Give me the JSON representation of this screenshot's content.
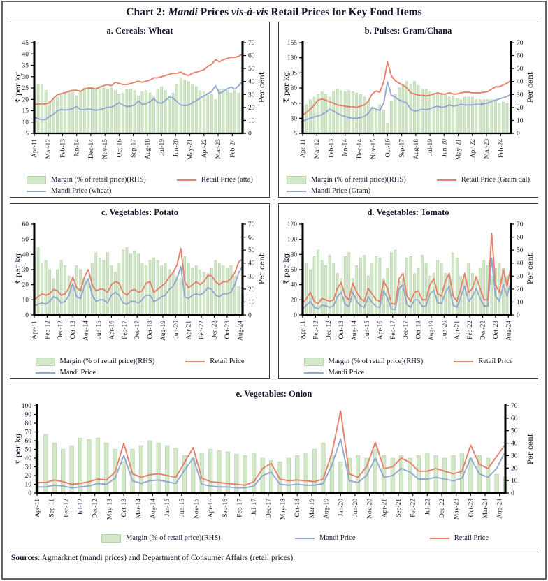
{
  "header": {
    "parts": [
      "Chart 2: ",
      "Mandi",
      " Prices ",
      "vis-à-vis",
      " Retail Prices for Key Food Items"
    ]
  },
  "footer": {
    "label": "Sources",
    "text": ": Agmarknet (mandi prices) and Department of Consumer Affairs (retail prices)."
  },
  "colors": {
    "retail": "#e5806a",
    "mandi": "#92a8cf",
    "margin_fill": "#d3e7c9",
    "margin_edge": "#b4d3a8",
    "axis": "#000000",
    "text": "#15152e"
  },
  "chart_data": [
    {
      "id": "a",
      "type": "bar+line combo",
      "title": "a. Cereals: Wheat",
      "ylabel_left": "₹ per kg",
      "ylabel_right": "Per cent",
      "y_left": {
        "min": 5,
        "max": 45,
        "step": 5
      },
      "y_right": {
        "min": 0,
        "max": 70,
        "step": 10
      },
      "x_start": "Apr-2011",
      "x_step_months": 3,
      "xtick_step_months": 11,
      "xtick_labels": [
        "Apr-11",
        "Mar-12",
        "Feb-13",
        "Jan-14",
        "Dec-14",
        "Nov-15",
        "Oct-16",
        "Sep-17",
        "Aug-18",
        "Jul-19",
        "Jun-20",
        "May-21",
        "Apr-22",
        "Mar-23",
        "Feb-24"
      ],
      "legend": {
        "margin": "Margin (% of retail price)(RHS)",
        "retail": "Retail Price (atta)",
        "mandi": "Mandi Price (wheat)"
      },
      "series": {
        "margin_pct_rhs": [
          33,
          38,
          38,
          33,
          25,
          26,
          28,
          30,
          31,
          33,
          32,
          29,
          32,
          35,
          35,
          34,
          35,
          36,
          35,
          34,
          35,
          33,
          30,
          31,
          34,
          34,
          33,
          29,
          32,
          33,
          31,
          28,
          34,
          36,
          33,
          29,
          31,
          38,
          43,
          41,
          40,
          38,
          36,
          33,
          32,
          31,
          30,
          26,
          34,
          34,
          33,
          31,
          33,
          31,
          29
        ],
        "mandi_price": [
          12,
          11.5,
          11,
          11.2,
          12.5,
          13.5,
          15,
          15.5,
          15.3,
          15.5,
          16,
          16.8,
          15.5,
          15.5,
          15.8,
          15.5,
          15.2,
          15.5,
          16,
          16.5,
          16.5,
          17.5,
          18.5,
          17.5,
          16.8,
          17,
          17.5,
          19.3,
          17.8,
          18,
          19,
          20.3,
          18.5,
          18.3,
          19.5,
          21,
          20.5,
          19,
          17.5,
          17.3,
          17.5,
          18.5,
          19.5,
          20.5,
          21.5,
          22.5,
          23.5,
          26,
          22.5,
          23.5,
          24.5,
          25.5,
          24.5,
          26,
          28
        ],
        "retail_price": [
          17.8,
          17.9,
          18,
          18,
          18.5,
          20.5,
          22,
          22.5,
          23,
          23.5,
          24,
          24,
          23.5,
          24.5,
          25,
          25,
          24.5,
          25.5,
          26,
          26.5,
          26,
          27.5,
          27,
          26.5,
          26.5,
          27,
          27.5,
          28,
          27.5,
          28,
          28.5,
          29.5,
          29.5,
          30,
          30.5,
          31,
          31.5,
          31.5,
          32,
          31,
          30.5,
          31.5,
          32,
          32.5,
          33,
          34.5,
          35.5,
          37.5,
          36.5,
          37.5,
          38,
          38.5,
          38.5,
          39,
          40
        ]
      }
    },
    {
      "id": "b",
      "type": "bar+line combo",
      "title": "b. Pulses: Gram/Chana",
      "ylabel_left": "₹ per kg",
      "ylabel_right": "Per cent",
      "y_left": {
        "min": 5,
        "max": 155,
        "step": 25
      },
      "y_right": {
        "min": 0,
        "max": 70,
        "step": 10
      },
      "x_start": "Apr-2011",
      "x_step_months": 3,
      "xtick_step_months": 11,
      "xtick_labels": [
        "Apr-11",
        "Mar-12",
        "Feb-13",
        "Jan-14",
        "Dec-14",
        "Nov-15",
        "Oct-16",
        "Sep-17",
        "Aug-18",
        "Jul-19",
        "Jun-20",
        "May-21",
        "Apr-22",
        "Mar-23",
        "Feb-24"
      ],
      "legend": {
        "margin": "Margin (% of retail price)(RHS)",
        "retail": "Retail Price (Gram dal)",
        "mandi": "Mandi Price (Gram)"
      },
      "series": {
        "margin_pct_rhs": [
          10,
          22,
          26,
          28,
          30,
          32,
          30,
          28,
          32,
          34,
          33,
          32,
          33,
          32,
          31,
          30,
          28,
          25,
          20,
          18,
          22,
          18,
          8,
          25,
          30,
          35,
          38,
          40,
          38,
          40,
          37,
          34,
          34,
          32,
          31,
          30,
          31,
          30,
          28,
          29,
          27,
          26,
          28,
          28,
          28,
          26,
          26,
          26,
          26,
          26,
          25,
          23,
          24,
          23,
          22
        ],
        "mandi_price": [
          25,
          28,
          30,
          32,
          34,
          36,
          40,
          45,
          42,
          38,
          35,
          33,
          31,
          30,
          30,
          31,
          33,
          38,
          48,
          45,
          43,
          55,
          90,
          68,
          65,
          60,
          58,
          55,
          45,
          42,
          43,
          45,
          44,
          46,
          48,
          50,
          48,
          49,
          52,
          50,
          51,
          53,
          52,
          52,
          52,
          53,
          53,
          54,
          55,
          58,
          60,
          62,
          64,
          66,
          70
        ],
        "retail_price": [
          35,
          40,
          45,
          52,
          60,
          62,
          60,
          57,
          55,
          52,
          51,
          50,
          49,
          49,
          48,
          50,
          52,
          58,
          70,
          75,
          73,
          90,
          123,
          100,
          92,
          88,
          85,
          80,
          72,
          70,
          68,
          68,
          67,
          68,
          70,
          72,
          70,
          70,
          72,
          70,
          70,
          72,
          73,
          73,
          72,
          72,
          72,
          73,
          74,
          78,
          82,
          82,
          85,
          88,
          92
        ]
      }
    },
    {
      "id": "c",
      "type": "bar+line combo",
      "title": "c. Vegetables: Potato",
      "ylabel_left": "₹ per kg",
      "ylabel_right": "Per cent",
      "y_left": {
        "min": 0,
        "max": 60,
        "step": 10
      },
      "y_right": {
        "min": 0,
        "max": 70,
        "step": 10
      },
      "x_start": "Apr-2011",
      "x_step_months": 3,
      "xtick_step_months": 10,
      "xtick_labels": [
        "Apr-11",
        "Feb-12",
        "Dec-12",
        "Oct-13",
        "Aug-14",
        "Jun-15",
        "Apr-16",
        "Feb-17",
        "Dec-17",
        "Oct-18",
        "Aug-19",
        "Jun-20",
        "Apr-21",
        "Feb-22",
        "Dec-22",
        "Oct-23",
        "Aug-24"
      ],
      "legend": {
        "margin": "Margin (% of retail price)(RHS)",
        "retail": "Retail Price",
        "mandi": "Mandi Price"
      },
      "series": {
        "margin_pct_rhs": [
          45,
          52,
          40,
          42,
          35,
          28,
          35,
          42,
          38,
          30,
          20,
          38,
          35,
          28,
          25,
          40,
          48,
          44,
          42,
          48,
          38,
          33,
          40,
          50,
          52,
          47,
          49,
          47,
          40,
          38,
          42,
          44,
          42,
          38,
          40,
          35,
          33,
          30,
          28,
          45,
          40,
          36,
          38,
          35,
          33,
          32,
          36,
          42,
          40,
          38,
          36,
          38,
          30,
          22,
          16
        ],
        "mandi_price": [
          6,
          7,
          8,
          7,
          9,
          12,
          11,
          8,
          9,
          13,
          21,
          12,
          11,
          19,
          24,
          13,
          9,
          10,
          10,
          8,
          13,
          15,
          13,
          8,
          7,
          9,
          9,
          8,
          10,
          13,
          13,
          9,
          10,
          12,
          13,
          17,
          19,
          24,
          32,
          12,
          11,
          13,
          14,
          13,
          15,
          18,
          17,
          13,
          12,
          14,
          14,
          15,
          20,
          28,
          32
        ],
        "retail_price": [
          10,
          12,
          14,
          13,
          14,
          17,
          16,
          13,
          14,
          18,
          25,
          18,
          16,
          25,
          30,
          20,
          16,
          17,
          17,
          15,
          20,
          22,
          21,
          15,
          13,
          16,
          17,
          15,
          16,
          21,
          22,
          15,
          17,
          19,
          21,
          25,
          28,
          33,
          44,
          22,
          18,
          20,
          22,
          20,
          22,
          26,
          26,
          22,
          20,
          22,
          22,
          24,
          28,
          35,
          37
        ]
      }
    },
    {
      "id": "d",
      "type": "bar+line combo",
      "title": "d. Vegetables: Tomato",
      "ylabel_left": "₹ per kg",
      "ylabel_right": "Per cent",
      "y_left": {
        "min": 0,
        "max": 120,
        "step": 20
      },
      "y_right": {
        "min": 0,
        "max": 70,
        "step": 10
      },
      "x_start": "Apr-2011",
      "x_step_months": 3,
      "xtick_step_months": 10,
      "xtick_labels": [
        "Apr-11",
        "Feb-12",
        "Dec-12",
        "Oct-13",
        "Aug-14",
        "Jun-15",
        "Apr-16",
        "Feb-17",
        "Dec-17",
        "Oct-18",
        "Aug-19",
        "Jun-20",
        "Apr-21",
        "Feb-22",
        "Dec-22",
        "Oct-23",
        "Aug-24"
      ],
      "legend": {
        "margin": "Margin (% of retail price)(RHS)",
        "retail": "Retail Price",
        "mandi": "Mandi Price"
      },
      "series": {
        "margin_pct_rhs": [
          48,
          40,
          35,
          45,
          50,
          42,
          38,
          46,
          40,
          32,
          28,
          45,
          48,
          28,
          38,
          44,
          46,
          30,
          40,
          45,
          44,
          28,
          36,
          48,
          50,
          26,
          28,
          44,
          45,
          32,
          36,
          46,
          40,
          30,
          32,
          42,
          40,
          32,
          30,
          48,
          44,
          30,
          30,
          40,
          32,
          30,
          36,
          42,
          38,
          30,
          36,
          40,
          36,
          30,
          28
        ],
        "mandi_price": [
          8,
          13,
          18,
          10,
          8,
          13,
          12,
          10,
          12,
          24,
          30,
          14,
          11,
          30,
          18,
          12,
          10,
          24,
          17,
          11,
          10,
          32,
          22,
          8,
          7,
          35,
          40,
          14,
          10,
          20,
          20,
          11,
          12,
          28,
          33,
          16,
          15,
          30,
          38,
          13,
          10,
          24,
          38,
          18,
          24,
          35,
          22,
          12,
          12,
          75,
          25,
          18,
          40,
          25,
          45
        ],
        "retail_price": [
          15,
          22,
          30,
          18,
          15,
          22,
          20,
          18,
          20,
          35,
          43,
          25,
          20,
          42,
          30,
          22,
          18,
          35,
          28,
          20,
          18,
          45,
          35,
          15,
          14,
          48,
          55,
          25,
          18,
          30,
          32,
          20,
          20,
          40,
          48,
          28,
          25,
          45,
          55,
          25,
          18,
          35,
          55,
          30,
          35,
          50,
          35,
          20,
          20,
          108,
          40,
          30,
          60,
          38,
          65
        ]
      }
    },
    {
      "id": "e",
      "type": "bar+line combo",
      "title": "e. Vegetables: Onion",
      "ylabel_left": "₹ per kg",
      "ylabel_right": "Per cent",
      "y_left": {
        "min": 0,
        "max": 100,
        "step": 10
      },
      "y_right": {
        "min": 0,
        "max": 70,
        "step": 10
      },
      "x_start": "Apr-2011",
      "x_step_months": 3,
      "xtick_step_months": 5,
      "xtick_labels": [
        "Apr-11",
        "Sep-11",
        "Feb-12",
        "Jul-12",
        "Dec-12",
        "May-13",
        "Oct-13",
        "Mar-14",
        "Aug-14",
        "Jan-15",
        "Jun-15",
        "Nov-15",
        "Apr-16",
        "Sep-16",
        "Feb-17",
        "Jul-17",
        "Dec-17",
        "May-18",
        "Oct-18",
        "Mar-19",
        "Aug-19",
        "Jan-20",
        "Jun-20",
        "Nov-20",
        "Apr-21",
        "Sep-21",
        "Feb-22",
        "Jul-22",
        "Dec-22",
        "May-23",
        "Oct-23",
        "Mar-24",
        "Aug-24"
      ],
      "legend": {
        "margin": "Margin (% of retail price)(RHS)",
        "mandi": "Mandi Price",
        "retail": "Retail Price"
      },
      "series": {
        "margin_pct_rhs": [
          42,
          47,
          40,
          35,
          38,
          44,
          43,
          44,
          40,
          35,
          25,
          35,
          38,
          42,
          40,
          38,
          36,
          30,
          28,
          32,
          35,
          34,
          33,
          31,
          30,
          32,
          28,
          26,
          25,
          28,
          30,
          32,
          35,
          40,
          30,
          25,
          28,
          30,
          28,
          35,
          30,
          28,
          30,
          28,
          30,
          32,
          30,
          28,
          30,
          32,
          28,
          30,
          28,
          15,
          13
        ],
        "mandi_price": [
          7,
          7,
          9,
          8,
          6,
          7,
          8,
          11,
          10,
          17,
          43,
          14,
          11,
          14,
          15,
          13,
          11,
          26,
          40,
          10,
          8,
          7,
          7,
          6,
          6,
          8,
          20,
          24,
          10,
          9,
          10,
          9,
          9,
          11,
          32,
          62,
          14,
          12,
          20,
          40,
          18,
          20,
          28,
          24,
          16,
          16,
          18,
          16,
          14,
          17,
          40,
          22,
          18,
          28,
          48
        ],
        "retail_price": [
          12,
          12,
          15,
          13,
          10,
          11,
          13,
          16,
          15,
          24,
          57,
          22,
          18,
          21,
          22,
          20,
          18,
          35,
          52,
          17,
          13,
          12,
          11,
          10,
          9,
          13,
          28,
          34,
          16,
          14,
          15,
          14,
          13,
          16,
          46,
          94,
          22,
          18,
          30,
          58,
          28,
          30,
          40,
          35,
          25,
          25,
          28,
          25,
          22,
          25,
          55,
          33,
          28,
          42,
          56
        ]
      }
    }
  ]
}
